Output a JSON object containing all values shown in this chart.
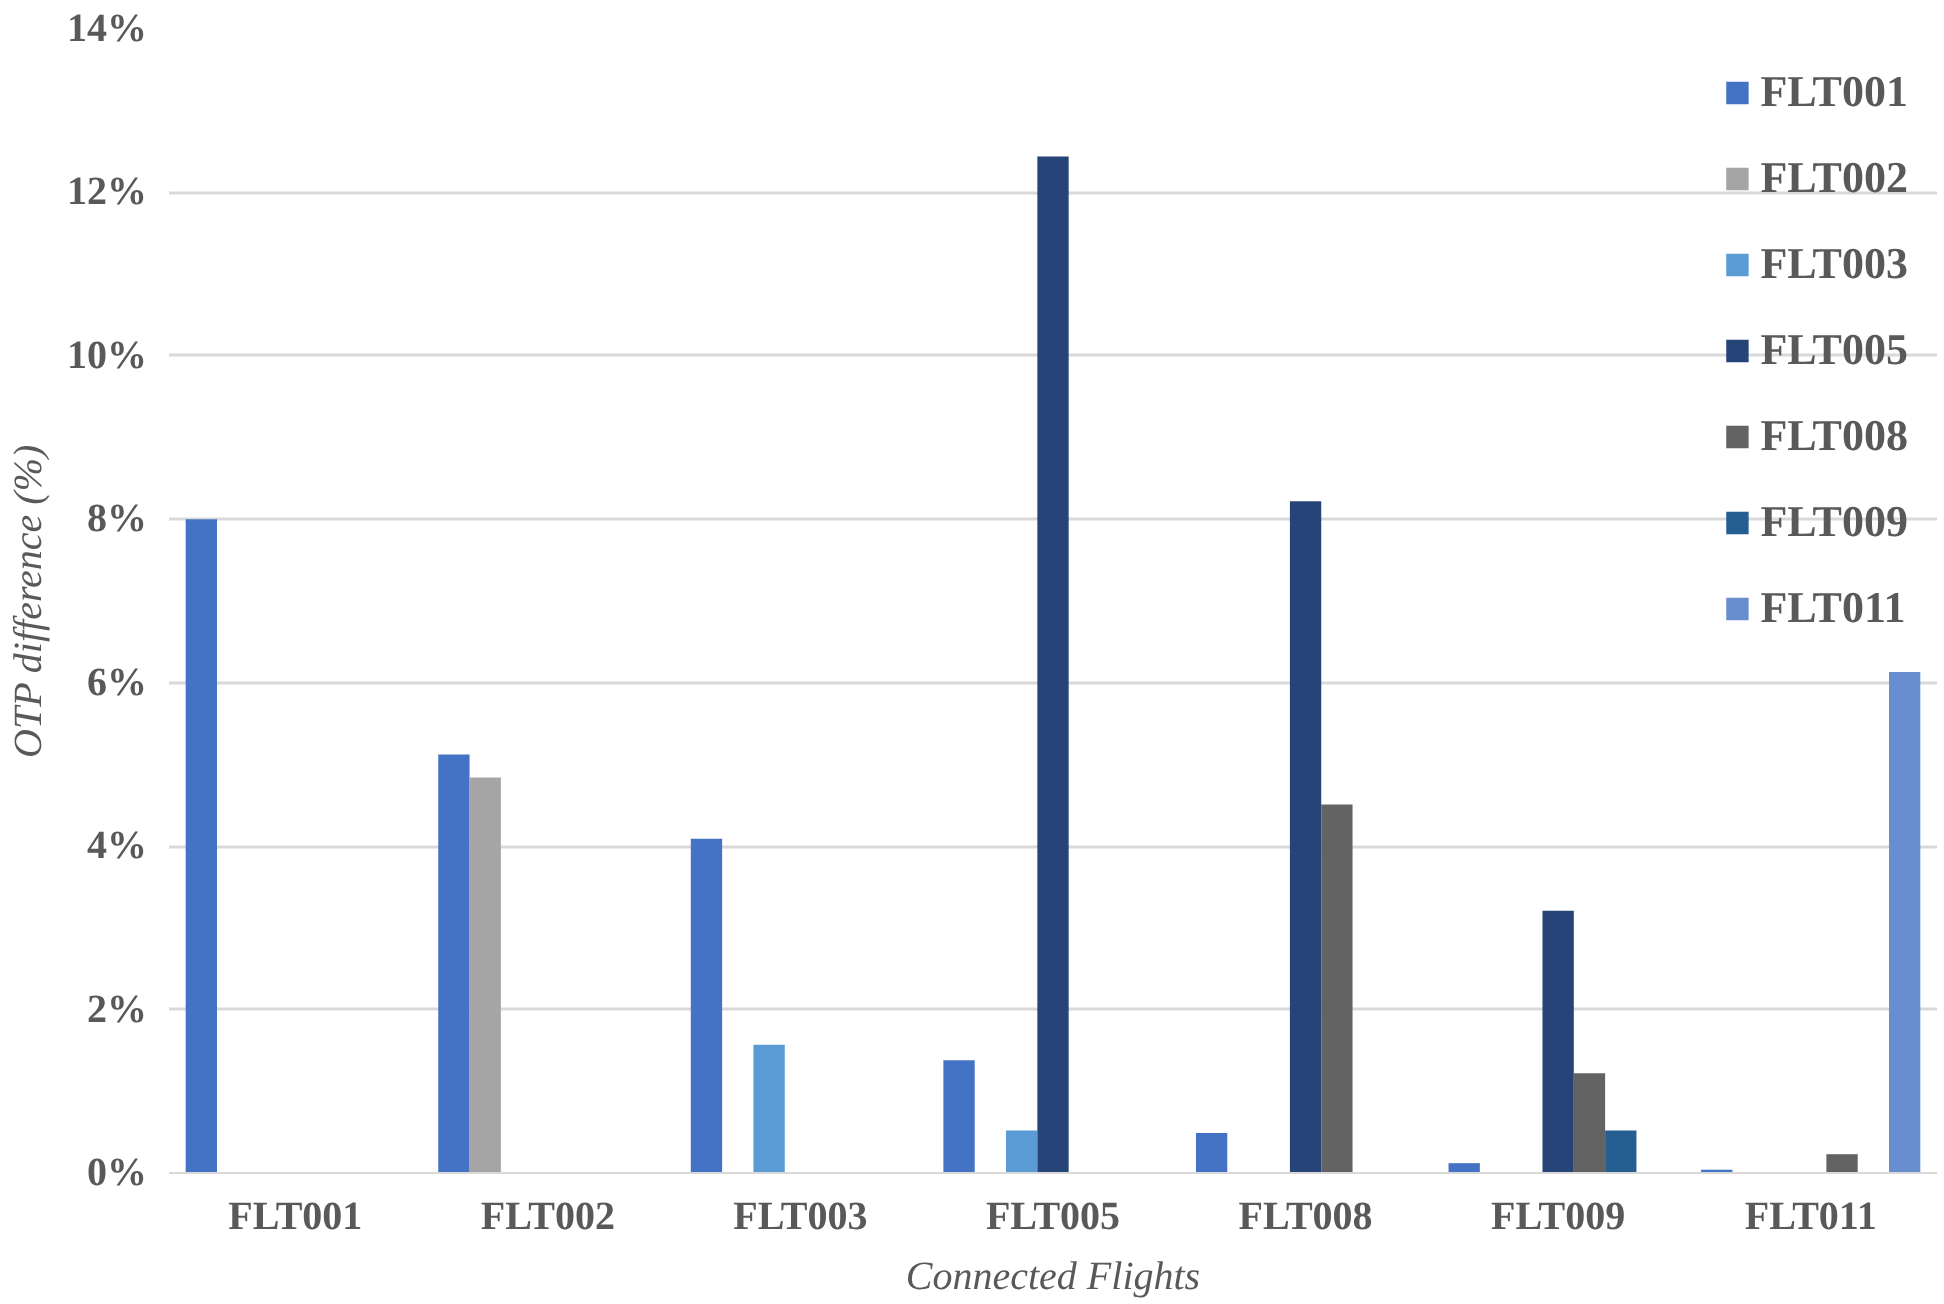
{
  "chart_data": {
    "type": "bar",
    "xlabel": "Connected Flights",
    "ylabel": "OTP difference (%)",
    "categories": [
      "FLT001",
      "FLT002",
      "FLT003",
      "FLT005",
      "FLT008",
      "FLT009",
      "FLT011"
    ],
    "series": [
      {
        "name": "FLT001",
        "color": "#4472c4",
        "values": [
          8.0,
          5.12,
          4.09,
          1.38,
          0.49,
          0.12,
          0.04
        ]
      },
      {
        "name": "FLT002",
        "color": "#a5a5a5",
        "values": [
          0,
          4.84,
          0,
          0,
          0,
          0,
          0
        ]
      },
      {
        "name": "FLT003",
        "color": "#5b9bd5",
        "values": [
          0,
          0,
          1.57,
          0.52,
          0,
          0,
          0
        ]
      },
      {
        "name": "FLT005",
        "color": "#264478",
        "values": [
          0,
          0,
          0,
          12.44,
          8.22,
          3.21,
          0
        ]
      },
      {
        "name": "FLT008",
        "color": "#636363",
        "values": [
          0,
          0,
          0,
          0,
          4.51,
          1.22,
          0.23
        ]
      },
      {
        "name": "FLT009",
        "color": "#255e91",
        "values": [
          0,
          0,
          0,
          0,
          0,
          0.52,
          0
        ]
      },
      {
        "name": "FLT011",
        "color": "#698ed0",
        "values": [
          0,
          0,
          0,
          0,
          0,
          0,
          6.13
        ]
      }
    ],
    "ylim": [
      0,
      14
    ],
    "yticks": [
      {
        "value": 0,
        "label": "0%"
      },
      {
        "value": 2,
        "label": "2%"
      },
      {
        "value": 4,
        "label": "4%"
      },
      {
        "value": 6,
        "label": "6%"
      },
      {
        "value": 8,
        "label": "8%"
      },
      {
        "value": 10,
        "label": "10%"
      },
      {
        "value": 12,
        "label": "12%"
      },
      {
        "value": 14,
        "label": "14%"
      }
    ],
    "grid": "y",
    "legend": "top right"
  }
}
